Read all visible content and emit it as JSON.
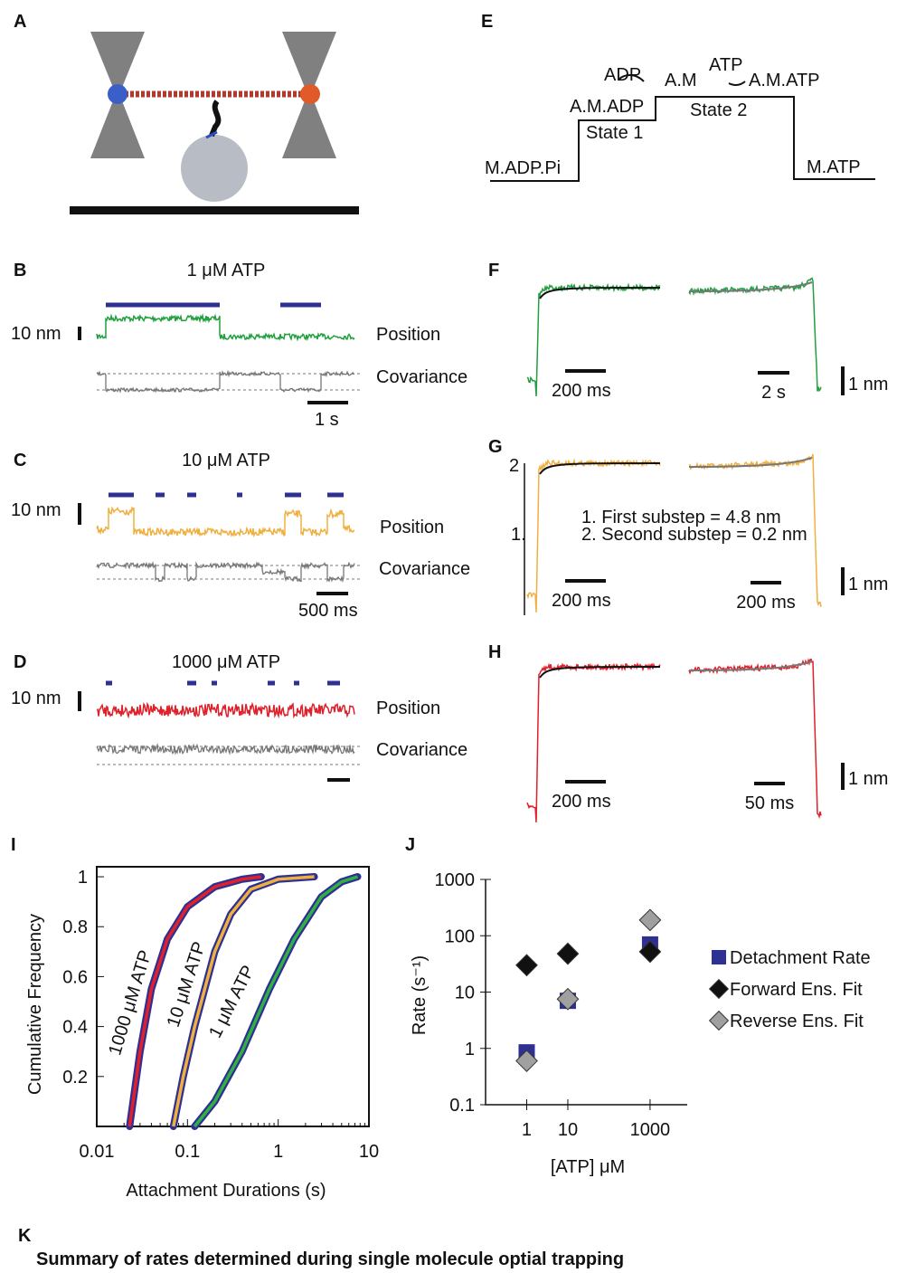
{
  "panels": {
    "A": {
      "label": "A"
    },
    "B": {
      "label": "B",
      "title": "1 μM ATP",
      "scale": "10 nm",
      "position": "Position",
      "covariance": "Covariance",
      "time_scale": "1 s"
    },
    "C": {
      "label": "C",
      "title": "10 μM ATP",
      "scale": "10 nm",
      "position": "Position",
      "covariance": "Covariance",
      "time_scale": "500 ms"
    },
    "D": {
      "label": "D",
      "title": "1000 μM ATP",
      "scale": "10 nm",
      "position": "Position",
      "covariance": "Covariance"
    },
    "E": {
      "label": "E",
      "states": [
        "M.ADP.Pi",
        "A.M.ADP",
        "A.M",
        "A.M.ATP",
        "M.ATP"
      ],
      "adp": "ADP",
      "atp": "ATP",
      "state1": "State 1",
      "state2": "State 2"
    },
    "F": {
      "label": "F",
      "scale_left": "200 ms",
      "scale_right": "2 s",
      "scale_y": "1 nm"
    },
    "G": {
      "label": "G",
      "scale_left": "200 ms",
      "scale_right": "200 ms",
      "scale_y": "1 nm",
      "step_marks": [
        "2",
        "1."
      ],
      "notes": [
        "1. First substep = 4.8 nm",
        "2. Second substep = 0.2 nm"
      ]
    },
    "H": {
      "label": "H",
      "scale_left": "200 ms",
      "scale_right": "50 ms",
      "scale_y": "1 nm"
    },
    "K": {
      "label": "K",
      "title": "Summary of rates determined during single molecule optial trapping"
    }
  },
  "chart_data": [
    {
      "type": "line",
      "label": "I",
      "xlabel": "Attachment Durations (s)",
      "ylabel": "Cumulative Frequency",
      "log_x": true,
      "xlim": [
        0.01,
        10
      ],
      "ylim": [
        0,
        1.04
      ],
      "xticks": [
        {
          "value": 0.01,
          "label": "0.01"
        },
        {
          "value": 0.1,
          "label": "0.1"
        },
        1,
        10
      ],
      "yticks": [
        0.2,
        0.4,
        0.6,
        0.8,
        1
      ],
      "series": [
        {
          "name": "1000 μM ATP",
          "color": "#e0202a",
          "x": [
            0.023,
            0.03,
            0.04,
            0.06,
            0.1,
            0.2,
            0.4,
            0.65
          ],
          "values": [
            0,
            0.3,
            0.55,
            0.75,
            0.88,
            0.96,
            0.99,
            1
          ]
        },
        {
          "name": "10 μM ATP",
          "color": "#f0b040",
          "x": [
            0.07,
            0.09,
            0.12,
            0.2,
            0.3,
            0.5,
            1,
            2.5
          ],
          "values": [
            0,
            0.2,
            0.4,
            0.7,
            0.85,
            0.95,
            0.99,
            1
          ]
        },
        {
          "name": "1 μM ATP",
          "color": "#30b040",
          "x": [
            0.12,
            0.2,
            0.4,
            0.8,
            1.5,
            3,
            5,
            7.5
          ],
          "values": [
            0,
            0.1,
            0.3,
            0.55,
            0.75,
            0.92,
            0.98,
            1
          ]
        }
      ]
    },
    {
      "type": "scatter",
      "label": "J",
      "xlabel": "[ATP] μM",
      "ylabel": "Rate (s⁻¹)",
      "log_x": true,
      "log_y": true,
      "xlim": [
        0.1,
        8000
      ],
      "ylim": [
        0.1,
        1000
      ],
      "xticks": [
        1,
        10,
        1000
      ],
      "yticks": [
        0.1,
        1,
        10,
        100,
        1000
      ],
      "x": [
        1,
        10,
        1000
      ],
      "series": [
        {
          "name": "Detachment Rate",
          "color": "#2e3192",
          "marker": "square",
          "values": [
            0.85,
            7,
            70
          ]
        },
        {
          "name": "Forward Ens. Fit",
          "color": "#111111",
          "marker": "diamond",
          "values": [
            30,
            48,
            52
          ]
        },
        {
          "name": "Reverse Ens. Fit",
          "color": "#a0a0a0",
          "marker": "diamond",
          "values": [
            0.6,
            7.5,
            190
          ]
        }
      ]
    }
  ]
}
